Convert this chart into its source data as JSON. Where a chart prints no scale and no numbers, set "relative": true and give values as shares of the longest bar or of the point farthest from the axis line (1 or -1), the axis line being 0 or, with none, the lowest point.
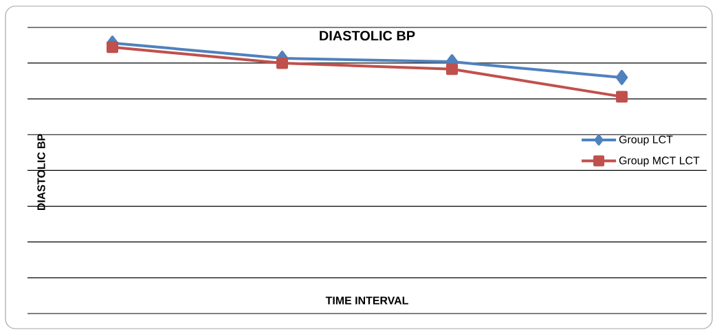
{
  "chart_data": {
    "type": "line",
    "title": "DIASTOLIC BP",
    "xlabel": "TIME INTERVAL",
    "ylabel": "DIASTOLIC BP",
    "categories": [
      null,
      null,
      null,
      null
    ],
    "relative": true,
    "grid": "y",
    "legend": "right",
    "line_style": "solid",
    "series": [
      {
        "name": "Group LCT",
        "color": "#4f81bd",
        "marker": "diamond",
        "values": [
          1,
          0.944,
          0.931,
          0.873
        ]
      },
      {
        "name": "Group MCT LCT",
        "color": "#c0504d",
        "marker": "square",
        "values": [
          0.985,
          0.926,
          0.904,
          0.802
        ]
      }
    ]
  }
}
